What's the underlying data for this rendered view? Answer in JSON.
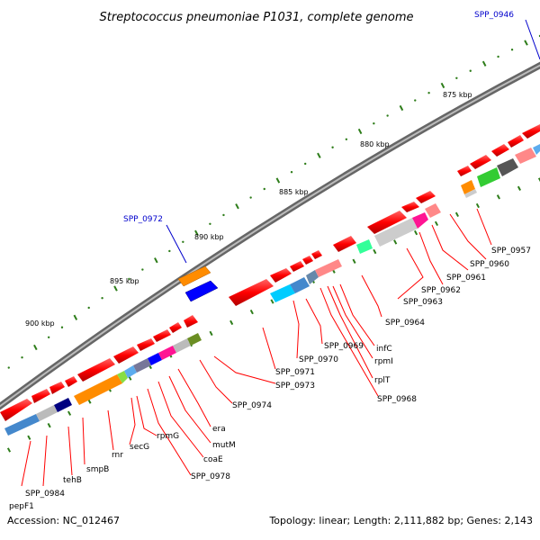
{
  "title": "Streptococcus pneumoniae P1031, complete genome",
  "footer": {
    "accession": "Accession: NC_012467",
    "stats": "Topology: linear; Length: 2,111,882 bp; Genes: 2,143"
  },
  "colors": {
    "red_gene": "#ff0000",
    "label_line_red": "#ff0000",
    "label_line_blue": "#0000cc",
    "backbone": "#888888",
    "tick": "#2e7d1a",
    "cog_orange": "#ff8c00",
    "cog_blue": "#0000ff",
    "cog_lightblue": "#4488cc",
    "cog_grey": "#bbbbbb",
    "cog_navy": "#000080",
    "cog_pink": "#ff69b4",
    "cog_green": "#33cc33",
    "cog_cyan": "#00ccff",
    "cog_olive": "#6b8e23",
    "cog_salmon": "#ff8888"
  },
  "scale_labels": [
    "875 kbp",
    "880 kbp",
    "885 kbp",
    "890 kbp",
    "895 kbp",
    "900 kbp"
  ],
  "gene_labels": [
    {
      "text": "SPP_0946",
      "color": "blue"
    },
    {
      "text": "SPP_0972",
      "color": "blue"
    },
    {
      "text": "SPP_0957",
      "color": "red"
    },
    {
      "text": "SPP_0960",
      "color": "red"
    },
    {
      "text": "SPP_0961",
      "color": "red"
    },
    {
      "text": "SPP_0962",
      "color": "red"
    },
    {
      "text": "SPP_0963",
      "color": "red"
    },
    {
      "text": "SPP_0964",
      "color": "red"
    },
    {
      "text": "infC",
      "color": "red"
    },
    {
      "text": "rpmI",
      "color": "red"
    },
    {
      "text": "rplT",
      "color": "red"
    },
    {
      "text": "SPP_0968",
      "color": "red"
    },
    {
      "text": "SPP_0969",
      "color": "red"
    },
    {
      "text": "SPP_0970",
      "color": "red"
    },
    {
      "text": "SPP_0971",
      "color": "red"
    },
    {
      "text": "SPP_0973",
      "color": "red"
    },
    {
      "text": "SPP_0974",
      "color": "red"
    },
    {
      "text": "era",
      "color": "red"
    },
    {
      "text": "mutM",
      "color": "red"
    },
    {
      "text": "coaE",
      "color": "red"
    },
    {
      "text": "SPP_0978",
      "color": "red"
    },
    {
      "text": "rpmG",
      "color": "red"
    },
    {
      "text": "secG",
      "color": "red"
    },
    {
      "text": "rnr",
      "color": "red"
    },
    {
      "text": "smpB",
      "color": "red"
    },
    {
      "text": "tehB",
      "color": "red"
    },
    {
      "text": "SPP_0984",
      "color": "red"
    },
    {
      "text": "pepF1",
      "color": "red"
    }
  ]
}
